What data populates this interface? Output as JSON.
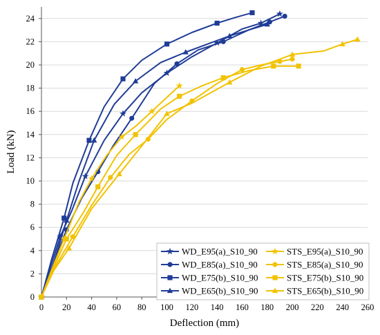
{
  "chart_data": {
    "type": "line",
    "title": "",
    "xlabel": "Deflection (mm)",
    "ylabel": "Load (kN)",
    "xlim": [
      0,
      260
    ],
    "ylim": [
      0,
      25
    ],
    "xticks": [
      "0",
      "20",
      "40",
      "60",
      "80",
      "100",
      "120",
      "140",
      "160",
      "180",
      "200",
      "220",
      "240",
      "260"
    ],
    "yticks": [
      "0",
      "2",
      "4",
      "6",
      "8",
      "10",
      "12",
      "14",
      "16",
      "18",
      "20",
      "22",
      "24"
    ],
    "grid": "y-major",
    "legend_position": "bottom-right, two columns",
    "colors": {
      "wd": "#1f3c96",
      "sts": "#f2c200"
    },
    "series": [
      {
        "name": "WD_E95(a)_S10_90",
        "color": "#1f3c96",
        "marker": "star",
        "x": [
          0,
          8,
          15,
          24,
          35,
          50,
          65,
          80,
          100,
          120,
          140,
          160,
          175,
          190
        ],
        "y": [
          0,
          2.8,
          5.2,
          7.4,
          10.4,
          13.5,
          15.8,
          17.6,
          19.3,
          20.7,
          21.9,
          23.1,
          23.6,
          24.4
        ]
      },
      {
        "name": "WD_E85(a)_S10_90",
        "color": "#1f3c96",
        "marker": "circle",
        "x": [
          0,
          10,
          20,
          32,
          45,
          57,
          72,
          90,
          108,
          125,
          145,
          165,
          182,
          194
        ],
        "y": [
          0,
          3.0,
          5.8,
          8.5,
          10.8,
          13.0,
          15.4,
          18.4,
          20.1,
          21.3,
          22.0,
          23.0,
          23.7,
          24.2
        ]
      },
      {
        "name": "WD_E75(b)_S10_90",
        "color": "#1f3c96",
        "marker": "square",
        "x": [
          0,
          8,
          18,
          25,
          38,
          50,
          65,
          80,
          100,
          120,
          140,
          155,
          168
        ],
        "y": [
          0,
          3.2,
          6.8,
          9.8,
          13.5,
          16.4,
          18.8,
          20.4,
          21.8,
          22.8,
          23.6,
          24.1,
          24.5
        ]
      },
      {
        "name": "WD_E65(b)_S10_90",
        "color": "#1f3c96",
        "marker": "triangle",
        "x": [
          0,
          8,
          20,
          30,
          42,
          58,
          75,
          95,
          115,
          135,
          150,
          165,
          180
        ],
        "y": [
          0,
          2.3,
          6.6,
          10.0,
          13.5,
          16.6,
          18.6,
          20.2,
          21.1,
          21.9,
          22.5,
          23.0,
          23.5
        ]
      },
      {
        "name": "STS_E95(a)_S10_90",
        "color": "#f2c200",
        "marker": "star",
        "x": [
          0,
          8,
          18,
          30,
          40,
          52,
          64,
          76,
          88,
          100,
          110
        ],
        "y": [
          0,
          2.3,
          5.0,
          8.2,
          10.2,
          12.2,
          13.8,
          14.8,
          16.0,
          17.2,
          18.2
        ]
      },
      {
        "name": "STS_E85(a)_S10_90",
        "color": "#f2c200",
        "marker": "circle",
        "x": [
          0,
          12,
          25,
          40,
          55,
          70,
          85,
          100,
          120,
          140,
          160,
          175,
          190,
          200
        ],
        "y": [
          0,
          2.8,
          5.2,
          7.9,
          10.3,
          12.3,
          13.6,
          15.3,
          16.9,
          18.4,
          19.6,
          20.0,
          20.3,
          20.5
        ]
      },
      {
        "name": "STS_E75(b)_S10_90",
        "color": "#f2c200",
        "marker": "square",
        "x": [
          0,
          10,
          20,
          33,
          45,
          60,
          75,
          95,
          110,
          128,
          145,
          165,
          185,
          205
        ],
        "y": [
          0,
          2.6,
          5.0,
          7.2,
          9.5,
          12.2,
          14.0,
          16.2,
          17.3,
          18.2,
          18.9,
          19.5,
          19.9,
          19.9
        ]
      },
      {
        "name": "STS_E65(b)_S10_90",
        "color": "#f2c200",
        "marker": "triangle",
        "x": [
          0,
          8,
          22,
          40,
          62,
          82,
          100,
          120,
          150,
          175,
          200,
          225,
          240,
          252
        ],
        "y": [
          0,
          2.0,
          4.2,
          7.6,
          10.6,
          13.3,
          15.8,
          16.7,
          18.5,
          19.9,
          20.9,
          21.2,
          21.8,
          22.2
        ]
      }
    ]
  }
}
